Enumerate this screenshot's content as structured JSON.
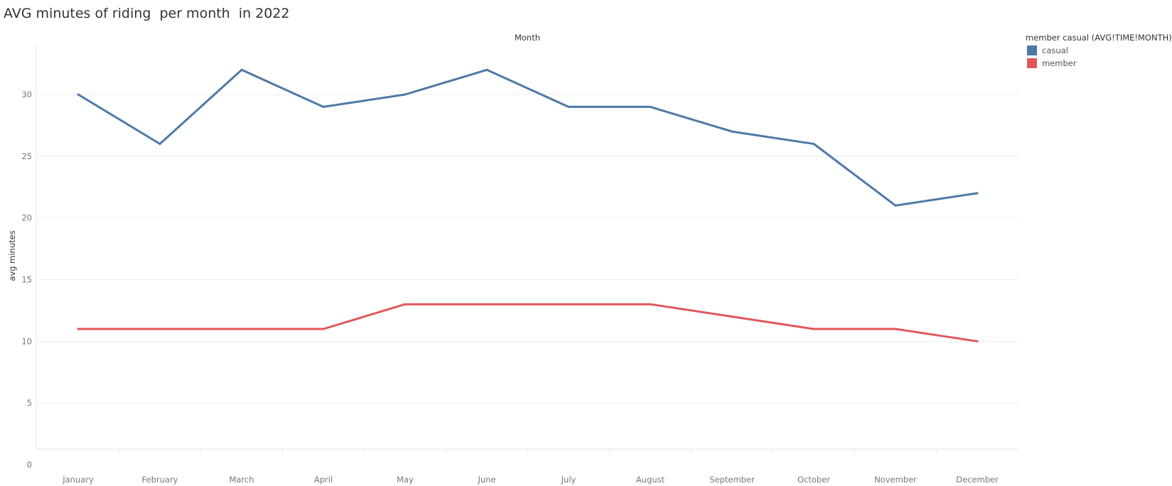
{
  "chart_data": {
    "type": "line",
    "title": "AVG minutes of riding  per month  in 2022",
    "xlabel": "Month",
    "ylabel": "avg minutes",
    "categories": [
      "January",
      "February",
      "March",
      "April",
      "May",
      "June",
      "July",
      "August",
      "September",
      "October",
      "November",
      "December"
    ],
    "yticks": [
      0,
      5,
      10,
      15,
      20,
      25,
      30
    ],
    "ylim": [
      0,
      34
    ],
    "grid": true,
    "legend": {
      "title": "member casual (AVG!TIME!MONTH)",
      "placement": "top-right"
    },
    "series": [
      {
        "name": "casual",
        "color": "#4e79a7",
        "values": [
          30,
          26,
          32,
          29,
          30,
          32,
          29,
          29,
          27,
          26,
          21,
          22
        ]
      },
      {
        "name": "member",
        "color": "#e15759",
        "values": [
          11,
          11,
          11,
          11,
          13,
          13,
          13,
          13,
          12,
          11,
          11,
          10
        ]
      }
    ]
  }
}
